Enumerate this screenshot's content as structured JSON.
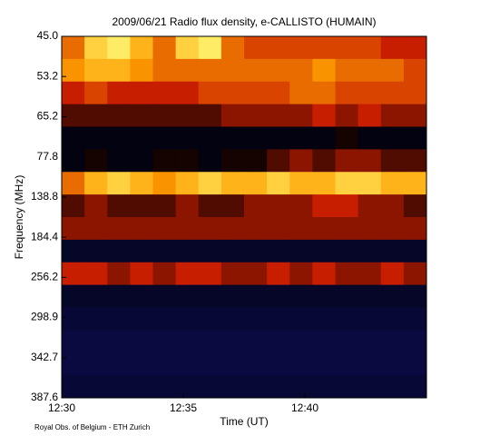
{
  "chart_data": {
    "type": "spectrogram",
    "title": "2009/06/21  Radio flux density, e-CALLISTO (HUMAIN)",
    "xlabel": "Time (UT)",
    "ylabel": "Frequency (MHz)",
    "footer": "Royal Obs. of Belgium - ETH Zurich",
    "xticks": [
      "12:30",
      "12:35",
      "12:40"
    ],
    "yticks": [
      "45.0",
      "53.2",
      "65.2",
      "77.8",
      "138.8",
      "184.4",
      "256.2",
      "298.9",
      "342.7",
      "387.6"
    ],
    "colormap": [
      "#1e1ec8",
      "#0c0c50",
      "#000000",
      "#c81e00",
      "#ffa000",
      "#ffff80",
      "#ffffff"
    ],
    "z": [
      [
        0.6,
        0.75,
        0.8,
        0.7,
        0.6,
        0.75,
        0.8,
        0.6,
        0.55,
        0.55,
        0.55,
        0.55,
        0.55,
        0.55,
        0.5,
        0.5
      ],
      [
        0.65,
        0.7,
        0.7,
        0.65,
        0.6,
        0.6,
        0.6,
        0.6,
        0.6,
        0.6,
        0.6,
        0.65,
        0.6,
        0.6,
        0.6,
        0.55
      ],
      [
        0.5,
        0.55,
        0.5,
        0.5,
        0.5,
        0.5,
        0.55,
        0.55,
        0.55,
        0.55,
        0.6,
        0.6,
        0.55,
        0.55,
        0.55,
        0.55
      ],
      [
        0.4,
        0.4,
        0.4,
        0.4,
        0.4,
        0.4,
        0.4,
        0.45,
        0.45,
        0.45,
        0.45,
        0.5,
        0.45,
        0.5,
        0.45,
        0.45
      ],
      [
        0.3,
        0.3,
        0.3,
        0.3,
        0.3,
        0.3,
        0.3,
        0.3,
        0.3,
        0.3,
        0.3,
        0.3,
        0.35,
        0.3,
        0.3,
        0.3
      ],
      [
        0.3,
        0.35,
        0.3,
        0.3,
        0.35,
        0.35,
        0.3,
        0.35,
        0.35,
        0.4,
        0.45,
        0.4,
        0.45,
        0.45,
        0.4,
        0.4
      ],
      [
        0.6,
        0.7,
        0.75,
        0.7,
        0.65,
        0.7,
        0.75,
        0.7,
        0.7,
        0.75,
        0.7,
        0.7,
        0.75,
        0.75,
        0.7,
        0.7
      ],
      [
        0.4,
        0.45,
        0.4,
        0.4,
        0.4,
        0.45,
        0.4,
        0.4,
        0.45,
        0.45,
        0.45,
        0.5,
        0.5,
        0.45,
        0.45,
        0.4
      ],
      [
        0.45,
        0.45,
        0.45,
        0.45,
        0.45,
        0.45,
        0.45,
        0.45,
        0.45,
        0.45,
        0.45,
        0.45,
        0.45,
        0.45,
        0.45,
        0.45
      ],
      [
        0.25,
        0.25,
        0.25,
        0.25,
        0.25,
        0.25,
        0.25,
        0.25,
        0.25,
        0.25,
        0.25,
        0.25,
        0.25,
        0.25,
        0.25,
        0.25
      ],
      [
        0.5,
        0.5,
        0.45,
        0.5,
        0.45,
        0.5,
        0.5,
        0.45,
        0.45,
        0.5,
        0.45,
        0.5,
        0.45,
        0.45,
        0.5,
        0.45
      ],
      [
        0.25,
        0.25,
        0.25,
        0.25,
        0.25,
        0.25,
        0.25,
        0.25,
        0.25,
        0.25,
        0.25,
        0.25,
        0.25,
        0.25,
        0.25,
        0.25
      ],
      [
        0.22,
        0.22,
        0.22,
        0.22,
        0.22,
        0.22,
        0.22,
        0.22,
        0.22,
        0.22,
        0.22,
        0.22,
        0.22,
        0.22,
        0.22,
        0.22
      ],
      [
        0.2,
        0.2,
        0.2,
        0.2,
        0.2,
        0.2,
        0.2,
        0.2,
        0.2,
        0.2,
        0.2,
        0.2,
        0.2,
        0.2,
        0.2,
        0.2
      ],
      [
        0.2,
        0.2,
        0.2,
        0.2,
        0.2,
        0.2,
        0.2,
        0.2,
        0.2,
        0.2,
        0.2,
        0.2,
        0.2,
        0.2,
        0.2,
        0.2
      ],
      [
        0.22,
        0.22,
        0.22,
        0.22,
        0.22,
        0.22,
        0.22,
        0.22,
        0.22,
        0.22,
        0.22,
        0.22,
        0.22,
        0.22,
        0.22,
        0.22
      ]
    ]
  }
}
